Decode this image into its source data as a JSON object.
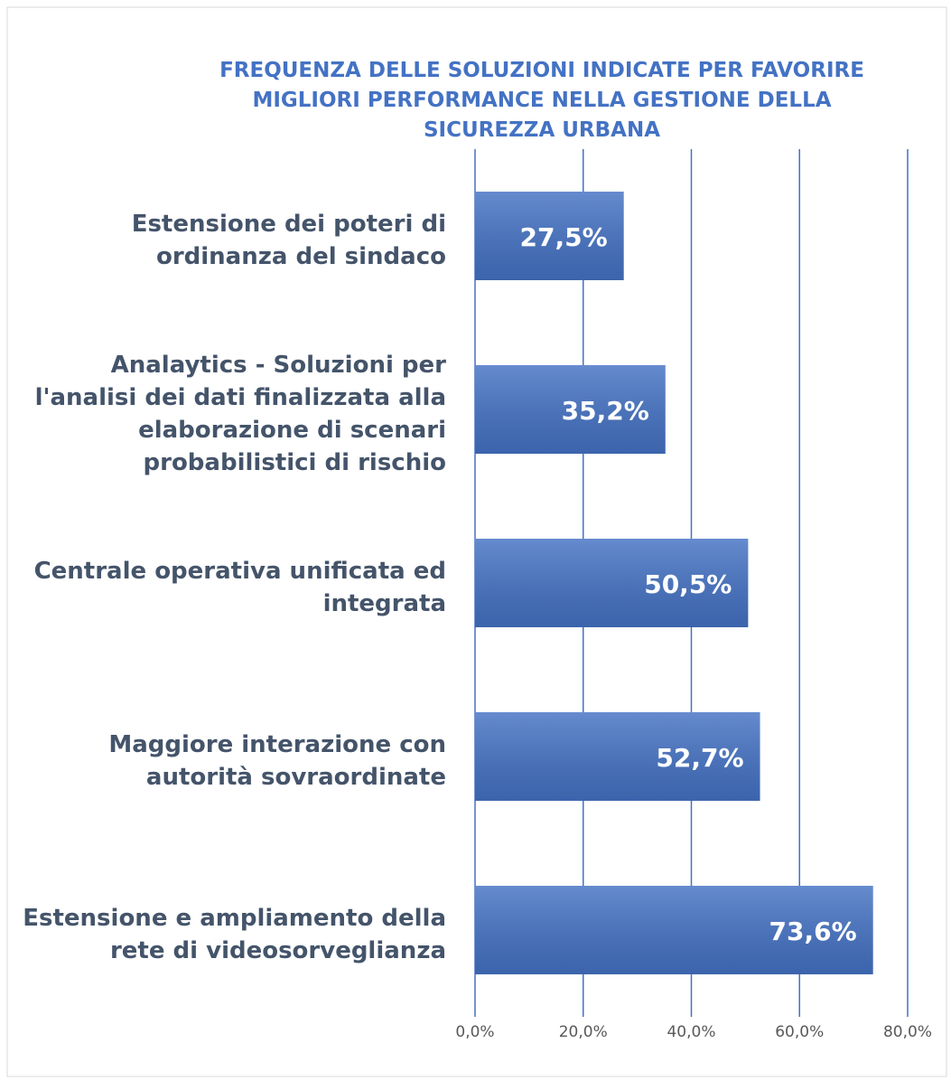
{
  "chart_data": {
    "type": "barh",
    "title": "FREQUENZA DELLE SOLUZIONI INDICATE PER FAVORIRE MIGLIORI PERFORMANCE NELLA GESTIONE DELLA SICUREZZA URBANA",
    "categories": [
      "Estensione dei poteri di ordinanza del sindaco",
      "Analaytics - Soluzioni per l'analisi dei dati finalizzata alla elaborazione di scenari probabilistici di rischio",
      "Centrale operativa unificata ed integrata",
      "Maggiore interazione con autorità sovraordinate",
      "Estensione e ampliamento della rete di videosorveglianza"
    ],
    "values": [
      27.5,
      35.2,
      50.5,
      52.7,
      73.6
    ],
    "value_labels": [
      "27,5%",
      "35,2%",
      "50,5%",
      "52,7%",
      "73,6%"
    ],
    "color": "#4472c4",
    "xlim": [
      0,
      80
    ],
    "xticks": [
      {
        "value": 0,
        "label": "0,0%"
      },
      {
        "value": 20,
        "label": "20,0%"
      },
      {
        "value": 40,
        "label": "40,0%"
      },
      {
        "value": 60,
        "label": "60,0%"
      },
      {
        "value": 80,
        "label": "80,0%"
      }
    ],
    "grid": true
  }
}
